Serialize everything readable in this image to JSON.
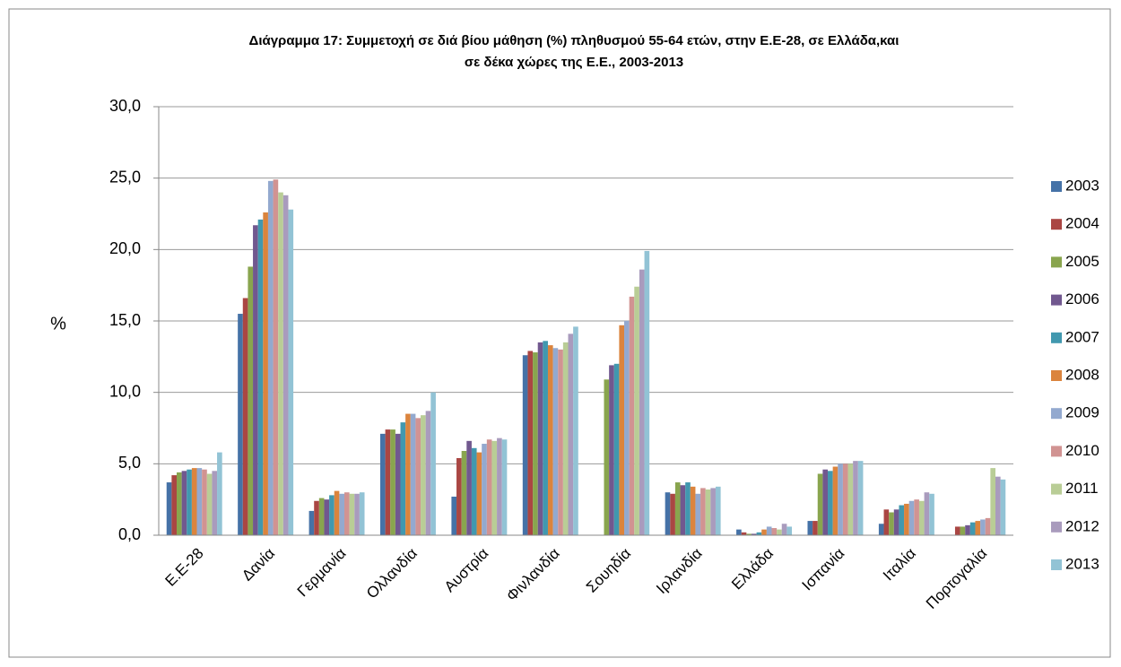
{
  "chart_data": {
    "type": "bar",
    "title": [
      "Διάγραμμα 17: Συμμετοχή σε διά βίου μάθηση (%) πληθυσμού 55-64 ετών, στην Ε.Ε-28, σε Ελλάδα,και",
      "σε δέκα χώρες της Ε.Ε., 2003-2013"
    ],
    "y_label": "%",
    "categories": [
      "Ε.Ε-28",
      "Δανία",
      "Γερμανία",
      "Ολλανδία",
      "Αυστρία",
      "Φινλανδία",
      "Σουηδία",
      "Ιρλανδία",
      "Ελλάδα",
      "Ισπανία",
      "Ιταλία",
      "Πορτογαλία"
    ],
    "series": [
      {
        "name": "2003",
        "color": "#4572a7",
        "values": [
          3.7,
          15.5,
          1.7,
          7.1,
          2.7,
          12.6,
          null,
          3.0,
          0.4,
          1.0,
          0.8,
          null
        ]
      },
      {
        "name": "2004",
        "color": "#aa4643",
        "values": [
          4.2,
          16.6,
          2.4,
          7.4,
          5.4,
          12.9,
          null,
          2.9,
          0.2,
          1.0,
          1.8,
          0.6
        ]
      },
      {
        "name": "2005",
        "color": "#89a54e",
        "values": [
          4.4,
          18.8,
          2.6,
          7.4,
          5.9,
          12.8,
          10.9,
          3.7,
          0.1,
          4.3,
          1.6,
          0.6
        ]
      },
      {
        "name": "2006",
        "color": "#71588f",
        "values": [
          4.5,
          21.7,
          2.5,
          7.1,
          6.6,
          13.5,
          11.9,
          3.5,
          0.1,
          4.6,
          1.8,
          0.7
        ]
      },
      {
        "name": "2007",
        "color": "#4198af",
        "values": [
          4.6,
          22.1,
          2.8,
          7.9,
          6.1,
          13.6,
          12.0,
          3.7,
          0.2,
          4.5,
          2.1,
          0.9
        ]
      },
      {
        "name": "2008",
        "color": "#db843d",
        "values": [
          4.7,
          22.6,
          3.1,
          8.5,
          5.8,
          13.3,
          14.7,
          3.4,
          0.4,
          4.8,
          2.2,
          1.0
        ]
      },
      {
        "name": "2009",
        "color": "#93a9cf",
        "values": [
          4.7,
          24.8,
          2.9,
          8.5,
          6.4,
          13.1,
          15.0,
          2.9,
          0.6,
          5.0,
          2.4,
          1.1
        ]
      },
      {
        "name": "2010",
        "color": "#d19392",
        "values": [
          4.6,
          24.9,
          3.0,
          8.2,
          6.7,
          13.0,
          16.7,
          3.3,
          0.5,
          5.0,
          2.5,
          1.2
        ]
      },
      {
        "name": "2011",
        "color": "#b9cd96",
        "values": [
          4.3,
          24.0,
          2.9,
          8.4,
          6.6,
          13.5,
          17.4,
          3.2,
          0.4,
          5.0,
          2.4,
          4.7
        ]
      },
      {
        "name": "2012",
        "color": "#a99bbd",
        "values": [
          4.5,
          23.8,
          2.9,
          8.7,
          6.8,
          14.1,
          18.6,
          3.3,
          0.8,
          5.2,
          3.0,
          4.1
        ]
      },
      {
        "name": "2013",
        "color": "#92c3d5",
        "values": [
          5.8,
          22.8,
          3.0,
          10.0,
          6.7,
          14.6,
          19.9,
          3.4,
          0.6,
          5.2,
          2.9,
          3.9
        ]
      }
    ],
    "ylim": [
      0,
      30
    ],
    "yticks": [
      {
        "value": 0,
        "label": "0,0"
      },
      {
        "value": 5,
        "label": "5,0"
      },
      {
        "value": 10,
        "label": "10,0"
      },
      {
        "value": 15,
        "label": "15,0"
      },
      {
        "value": 20,
        "label": "20,0"
      },
      {
        "value": 25,
        "label": "25,0"
      },
      {
        "value": 30,
        "label": "30,0"
      }
    ],
    "grid": true,
    "legend": "right"
  }
}
